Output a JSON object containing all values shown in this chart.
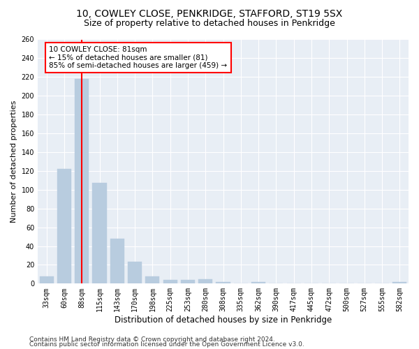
{
  "title1": "10, COWLEY CLOSE, PENKRIDGE, STAFFORD, ST19 5SX",
  "title2": "Size of property relative to detached houses in Penkridge",
  "xlabel": "Distribution of detached houses by size in Penkridge",
  "ylabel": "Number of detached properties",
  "categories": [
    "33sqm",
    "60sqm",
    "88sqm",
    "115sqm",
    "143sqm",
    "170sqm",
    "198sqm",
    "225sqm",
    "253sqm",
    "280sqm",
    "308sqm",
    "335sqm",
    "362sqm",
    "390sqm",
    "417sqm",
    "445sqm",
    "472sqm",
    "500sqm",
    "527sqm",
    "555sqm",
    "582sqm"
  ],
  "values": [
    8,
    122,
    218,
    107,
    48,
    23,
    8,
    4,
    4,
    5,
    2,
    0,
    2,
    0,
    0,
    0,
    0,
    0,
    0,
    0,
    2
  ],
  "bar_color": "#b8ccdf",
  "bar_edge_color": "#b8ccdf",
  "vline_x_index": 2,
  "vline_color": "red",
  "annotation_line1": "10 COWLEY CLOSE: 81sqm",
  "annotation_line2": "← 15% of detached houses are smaller (81)",
  "annotation_line3": "85% of semi-detached houses are larger (459) →",
  "ylim": [
    0,
    260
  ],
  "yticks": [
    0,
    20,
    40,
    60,
    80,
    100,
    120,
    140,
    160,
    180,
    200,
    220,
    240,
    260
  ],
  "background_color": "#e8eef5",
  "grid_color": "#ffffff",
  "footer1": "Contains HM Land Registry data © Crown copyright and database right 2024.",
  "footer2": "Contains public sector information licensed under the Open Government Licence v3.0.",
  "title1_fontsize": 10,
  "title2_fontsize": 9,
  "xlabel_fontsize": 8.5,
  "ylabel_fontsize": 8,
  "tick_fontsize": 7,
  "footer_fontsize": 6.5,
  "annotation_fontsize": 7.5
}
